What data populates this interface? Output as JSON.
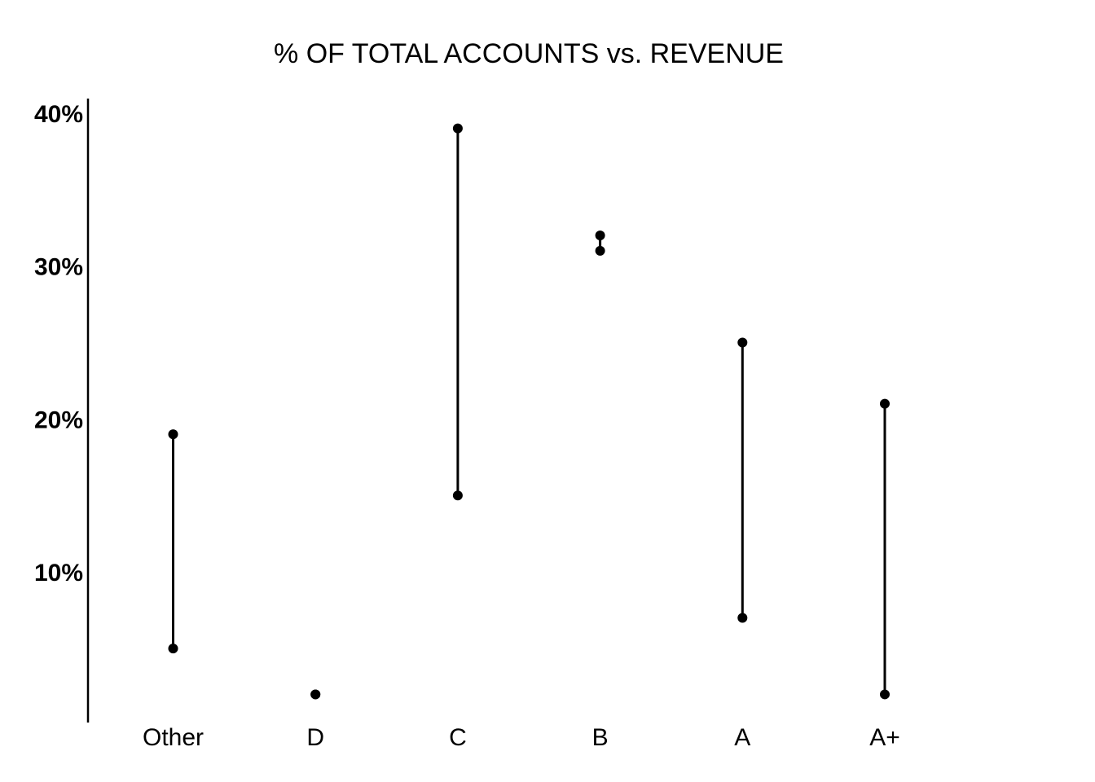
{
  "chart_data": {
    "type": "dumbbell",
    "title": "% OF TOTAL ACCOUNTS vs. REVENUE",
    "xlabel": "",
    "ylabel": "",
    "categories": [
      "Other",
      "D",
      "C",
      "B",
      "A",
      "A+"
    ],
    "series": [
      {
        "values": [
          19,
          2,
          39,
          32,
          25,
          21
        ]
      },
      {
        "values": [
          5,
          2,
          15,
          31,
          7,
          2
        ]
      }
    ],
    "ylim": [
      0,
      40
    ],
    "yticks": [
      10,
      20,
      30,
      40
    ],
    "ytick_labels": [
      "10%",
      "20%",
      "30%",
      "40%"
    ],
    "grid": false,
    "legend": "none",
    "colors": {
      "mark": "#000000",
      "text": "#000000",
      "background": "#ffffff"
    }
  }
}
